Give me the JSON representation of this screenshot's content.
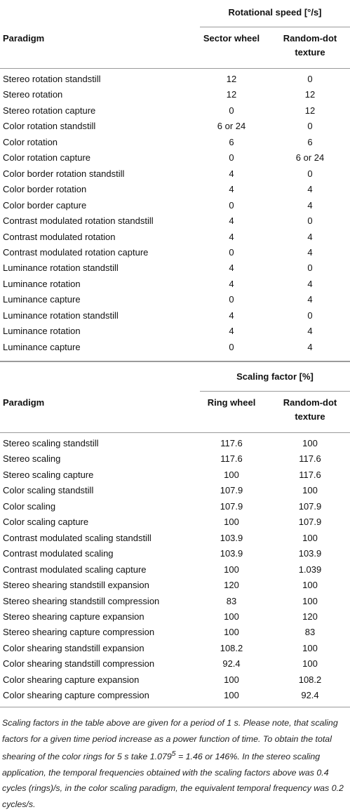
{
  "sections": [
    {
      "header": {
        "group": "Rotational speed [°/s]",
        "columns": [
          "Paradigm",
          "Sector wheel",
          "Random-dot texture"
        ]
      },
      "rows": [
        [
          "Stereo rotation standstill",
          "12",
          "0"
        ],
        [
          "Stereo rotation",
          "12",
          "12"
        ],
        [
          "Stereo rotation capture",
          "0",
          "12"
        ],
        [
          "Color rotation standstill",
          "6 or 24",
          "0"
        ],
        [
          "Color rotation",
          "6",
          "6"
        ],
        [
          "Color rotation capture",
          "0",
          "6 or 24"
        ],
        [
          "Color border rotation standstill",
          "4",
          "0"
        ],
        [
          "Color border rotation",
          "4",
          "4"
        ],
        [
          "Color border capture",
          "0",
          "4"
        ],
        [
          "Contrast modulated rotation standstill",
          "4",
          "0"
        ],
        [
          "Contrast modulated rotation",
          "4",
          "4"
        ],
        [
          "Contrast modulated rotation capture",
          "0",
          "4"
        ],
        [
          "Luminance rotation standstill",
          "4",
          "0"
        ],
        [
          "Luminance rotation",
          "4",
          "4"
        ],
        [
          "Luminance capture",
          "0",
          "4"
        ],
        [
          "Luminance rotation standstill",
          "4",
          "0"
        ],
        [
          "Luminance rotation",
          "4",
          "4"
        ],
        [
          "Luminance capture",
          "0",
          "4"
        ]
      ]
    },
    {
      "header": {
        "group": "Scaling factor [%]",
        "columns": [
          "Paradigm",
          "Ring wheel",
          "Random-dot texture"
        ]
      },
      "rows": [
        [
          "Stereo scaling standstill",
          "117.6",
          "100"
        ],
        [
          "Stereo scaling",
          "117.6",
          "117.6"
        ],
        [
          "Stereo scaling capture",
          "100",
          "117.6"
        ],
        [
          "Color scaling standstill",
          "107.9",
          "100"
        ],
        [
          "Color scaling",
          "107.9",
          "107.9"
        ],
        [
          "Color scaling capture",
          "100",
          "107.9"
        ],
        [
          "Contrast modulated scaling standstill",
          "103.9",
          "100"
        ],
        [
          "Contrast modulated scaling",
          "103.9",
          "103.9"
        ],
        [
          "Contrast modulated scaling capture",
          "100",
          "1.039"
        ],
        [
          "Stereo shearing standstill expansion",
          "120",
          "100"
        ],
        [
          "Stereo shearing standstill compression",
          "83",
          "100"
        ],
        [
          "Stereo shearing capture expansion",
          "100",
          "120"
        ],
        [
          "Stereo shearing capture compression",
          "100",
          "83"
        ],
        [
          "Color shearing standstill expansion",
          "108.2",
          "100"
        ],
        [
          "Color shearing standstill compression",
          "92.4",
          "100"
        ],
        [
          "Color shearing capture expansion",
          "100",
          "108.2"
        ],
        [
          "Color shearing capture compression",
          "100",
          "92.4"
        ]
      ]
    }
  ],
  "footnote": [
    "Scaling factors in the table above are given for a period of 1 s. Please note, that scaling factors for a given time period increase as a power function of time. To obtain the total shearing of the color rings for 5 s take 1.079",
    "5",
    " = 1.46 or 146%. In the stereo scaling application, the temporal frequencies obtained with the scaling factors above was 0.4 cycles (rings)/s, in the color scaling paradigm, the equivalent temporal frequency was 0.2 cycles/s."
  ]
}
